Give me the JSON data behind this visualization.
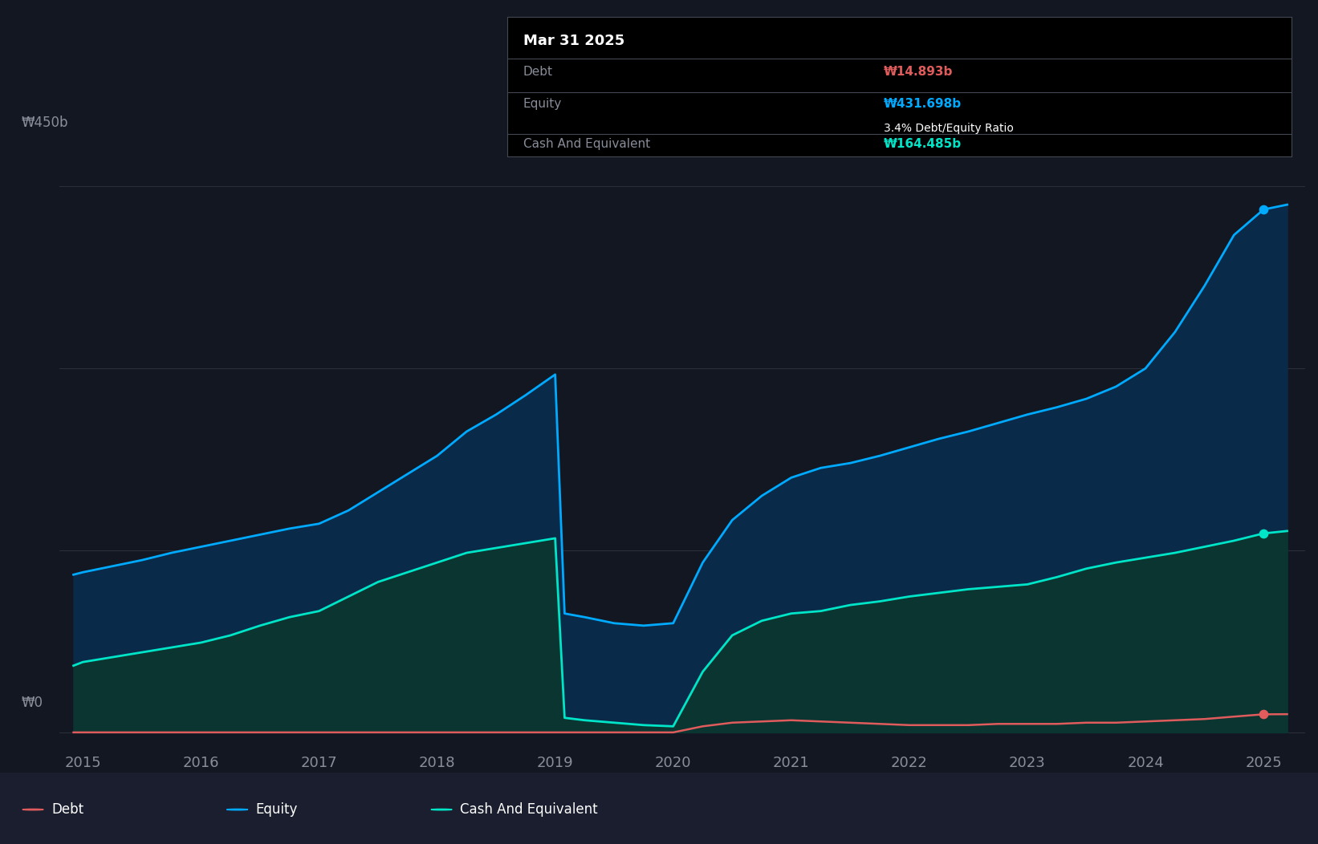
{
  "bg_color": "#131722",
  "plot_bg_color": "#131722",
  "grid_color": "#2a2e39",
  "title_box_bg": "#000000",
  "title_box_border": "#3a3e4a",
  "tooltip": {
    "date": "Mar 31 2025",
    "debt_label": "Debt",
    "debt_value": "₩14.893b",
    "debt_color": "#e05c5c",
    "equity_label": "Equity",
    "equity_value": "₩431.698b",
    "equity_color": "#00aaff",
    "ratio_text": "3.4% Debt/Equity Ratio",
    "ratio_color": "#ffffff",
    "cash_label": "Cash And Equivalent",
    "cash_value": "₩164.485b",
    "cash_color": "#00e5c8"
  },
  "ylabel_450": "₩450b",
  "ylabel_0": "₩0",
  "x_ticks": [
    2015,
    2016,
    2017,
    2018,
    2019,
    2020,
    2021,
    2022,
    2023,
    2024,
    2025
  ],
  "equity_color": "#00aaff",
  "equity_fill": "#0a2a4a",
  "cash_color": "#00e5c8",
  "cash_fill": "#0a3530",
  "debt_color": "#e05c5c",
  "legend": [
    {
      "label": "Debt",
      "color": "#e05c5c"
    },
    {
      "label": "Equity",
      "color": "#00aaff"
    },
    {
      "label": "Cash And Equivalent",
      "color": "#00e5c8"
    }
  ],
  "years": [
    2014.92,
    2015.0,
    2015.25,
    2015.5,
    2015.75,
    2016.0,
    2016.25,
    2016.5,
    2016.75,
    2017.0,
    2017.25,
    2017.5,
    2017.75,
    2018.0,
    2018.25,
    2018.5,
    2018.75,
    2019.0,
    2019.08,
    2019.25,
    2019.5,
    2019.75,
    2020.0,
    2020.25,
    2020.5,
    2020.75,
    2021.0,
    2021.25,
    2021.5,
    2021.75,
    2022.0,
    2022.25,
    2022.5,
    2022.75,
    2023.0,
    2023.25,
    2023.5,
    2023.75,
    2024.0,
    2024.25,
    2024.5,
    2024.75,
    2025.0,
    2025.2
  ],
  "equity": [
    130,
    132,
    137,
    142,
    148,
    153,
    158,
    163,
    168,
    172,
    183,
    198,
    213,
    228,
    248,
    262,
    278,
    295,
    98,
    95,
    90,
    88,
    90,
    140,
    175,
    195,
    210,
    218,
    222,
    228,
    235,
    242,
    248,
    255,
    262,
    268,
    275,
    285,
    300,
    330,
    368,
    410,
    431,
    435
  ],
  "cash": [
    55,
    58,
    62,
    66,
    70,
    74,
    80,
    88,
    95,
    100,
    112,
    124,
    132,
    140,
    148,
    152,
    156,
    160,
    12,
    10,
    8,
    6,
    5,
    50,
    80,
    92,
    98,
    100,
    105,
    108,
    112,
    115,
    118,
    120,
    122,
    128,
    135,
    140,
    144,
    148,
    153,
    158,
    164,
    166
  ],
  "debt": [
    0,
    0,
    0,
    0,
    0,
    0,
    0,
    0,
    0,
    0,
    0,
    0,
    0,
    0,
    0,
    0,
    0,
    0,
    0,
    0,
    0,
    0,
    0,
    5,
    8,
    9,
    10,
    9,
    8,
    7,
    6,
    6,
    6,
    7,
    7,
    7,
    8,
    8,
    9,
    10,
    11,
    13,
    14.893,
    15
  ],
  "xlim": [
    2014.8,
    2025.35
  ],
  "ylim": [
    -12,
    475
  ],
  "figsize": [
    16.42,
    10.52
  ],
  "dpi": 100
}
